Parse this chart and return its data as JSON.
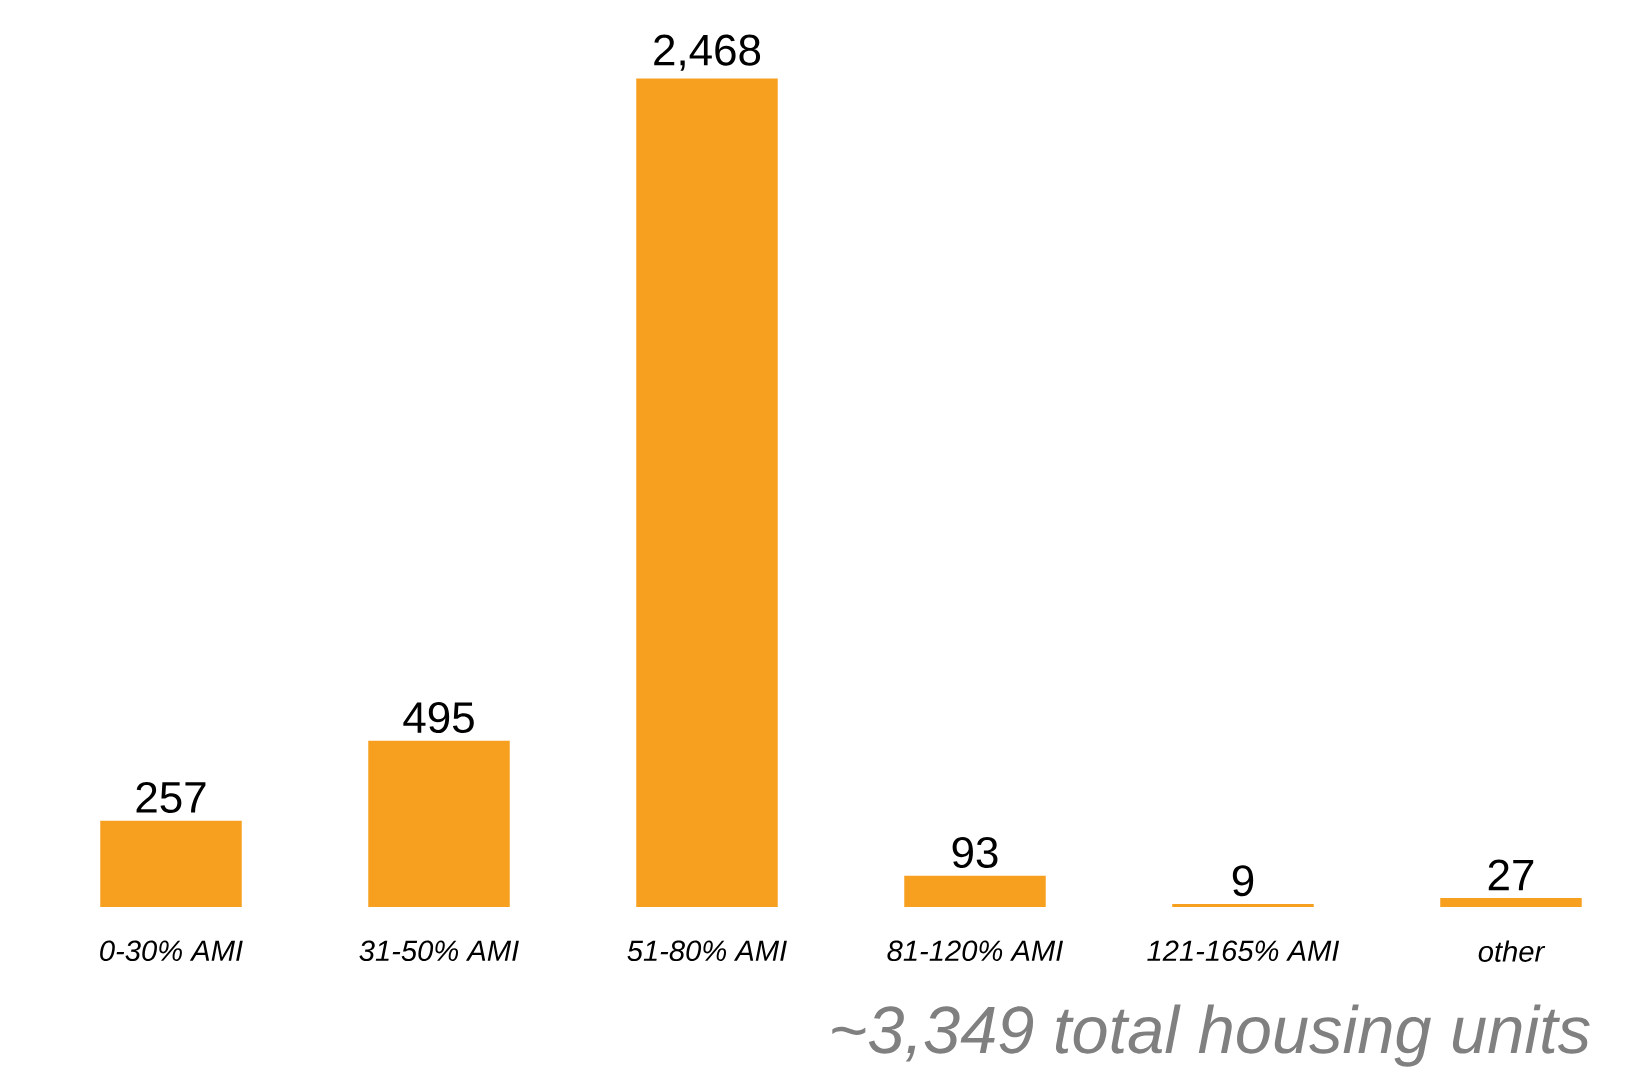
{
  "chart_data": {
    "type": "bar",
    "categories": [
      "0-30% AMI",
      "31-50% AMI",
      "51-80% AMI",
      "81-120% AMI",
      "121-165% AMI",
      "other"
    ],
    "values": [
      257,
      495,
      2468,
      93,
      9,
      27
    ],
    "color": "#f7a01f",
    "value_labels": [
      "257",
      "495",
      "2,468",
      "93",
      "9",
      "27"
    ],
    "annotations": [
      "~3,349 total housing units"
    ]
  }
}
